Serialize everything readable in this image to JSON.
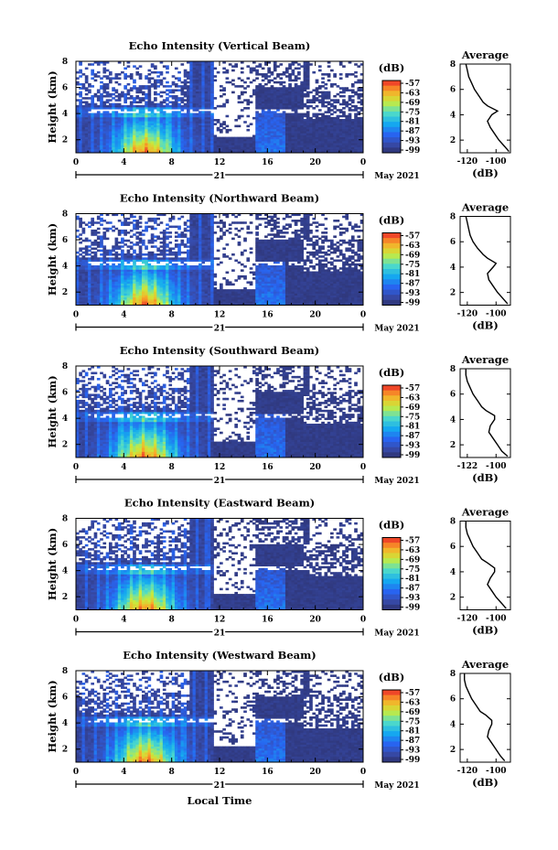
{
  "figure": {
    "x_title": "Local Time",
    "date_label": "May 2021",
    "day_label": "21",
    "y_label": "Height (km)",
    "cbar_unit": "(dB)",
    "profile_title": "Average",
    "profile_xlabel": "(dB)"
  },
  "chart_data": [
    {
      "type": "heatmap",
      "title": "Echo Intensity (Vertical Beam)",
      "xlabel": "Local Time",
      "ylabel": "Height (km)",
      "x_ticks": [
        "0",
        "4",
        "8",
        "12",
        "16",
        "20",
        "0"
      ],
      "y_ticks": [
        "2",
        "4",
        "6",
        "8"
      ],
      "xlim": [
        0,
        24
      ],
      "ylim": [
        1,
        8
      ],
      "colorbar": {
        "label": "(dB)",
        "ticks": [
          "-57",
          "-63",
          "-69",
          "-75",
          "-81",
          "-87",
          "-93",
          "-99"
        ],
        "range": [
          -99,
          -57
        ]
      },
      "profile": {
        "title": "Average",
        "xlabel": "(dB)",
        "x_ticks": [
          "-120",
          "-100"
        ],
        "xlim": [
          -125,
          -90
        ],
        "y_ticks": [
          "2",
          "4",
          "6",
          "8"
        ],
        "points": [
          [
            -91,
            1.1
          ],
          [
            -94,
            1.5
          ],
          [
            -98,
            2.0
          ],
          [
            -101,
            2.5
          ],
          [
            -104,
            3.0
          ],
          [
            -106,
            3.5
          ],
          [
            -103,
            4.0
          ],
          [
            -99,
            4.3
          ],
          [
            -106,
            4.7
          ],
          [
            -109,
            5.0
          ],
          [
            -112,
            5.5
          ],
          [
            -115,
            6.0
          ],
          [
            -117,
            6.5
          ],
          [
            -119,
            7.0
          ],
          [
            -120,
            7.5
          ],
          [
            -121,
            8.0
          ]
        ]
      }
    },
    {
      "type": "heatmap",
      "title": "Echo Intensity (Northward Beam)",
      "xlabel": "Local Time",
      "ylabel": "Height (km)",
      "x_ticks": [
        "0",
        "4",
        "8",
        "12",
        "16",
        "20",
        "0"
      ],
      "y_ticks": [
        "2",
        "4",
        "6",
        "8"
      ],
      "xlim": [
        0,
        24
      ],
      "ylim": [
        1,
        8
      ],
      "colorbar": {
        "label": "(dB)",
        "ticks": [
          "-57",
          "-63",
          "-69",
          "-75",
          "-81",
          "-87",
          "-93",
          "-99"
        ],
        "range": [
          -99,
          -57
        ]
      },
      "profile": {
        "title": "Average",
        "xlabel": "(dB)",
        "x_ticks": [
          "-120",
          "-100"
        ],
        "xlim": [
          -125,
          -90
        ],
        "y_ticks": [
          "2",
          "4",
          "6",
          "8"
        ],
        "points": [
          [
            -92,
            1.1
          ],
          [
            -95,
            1.5
          ],
          [
            -99,
            2.0
          ],
          [
            -102,
            2.5
          ],
          [
            -105,
            3.0
          ],
          [
            -106,
            3.5
          ],
          [
            -102,
            4.0
          ],
          [
            -100,
            4.3
          ],
          [
            -106,
            4.7
          ],
          [
            -109,
            5.0
          ],
          [
            -113,
            5.5
          ],
          [
            -116,
            6.0
          ],
          [
            -118,
            6.5
          ],
          [
            -119,
            7.0
          ],
          [
            -120,
            7.5
          ],
          [
            -121,
            8.0
          ]
        ]
      }
    },
    {
      "type": "heatmap",
      "title": "Echo Intensity (Southward Beam)",
      "xlabel": "Local Time",
      "ylabel": "Height (km)",
      "x_ticks": [
        "0",
        "4",
        "8",
        "12",
        "16",
        "20",
        "0"
      ],
      "y_ticks": [
        "2",
        "4",
        "6",
        "8"
      ],
      "xlim": [
        0,
        24
      ],
      "ylim": [
        1,
        8
      ],
      "colorbar": {
        "label": "(dB)",
        "ticks": [
          "-57",
          "-63",
          "-69",
          "-75",
          "-81",
          "-87",
          "-93",
          "-99"
        ],
        "range": [
          -99,
          -57
        ]
      },
      "profile": {
        "title": "Average",
        "xlabel": "(dB)",
        "x_ticks": [
          "-122",
          "-100"
        ],
        "xlim": [
          -125,
          -90
        ],
        "y_ticks": [
          "2",
          "4",
          "6",
          "8"
        ],
        "points": [
          [
            -92,
            1.1
          ],
          [
            -96,
            1.5
          ],
          [
            -99,
            2.0
          ],
          [
            -102,
            2.5
          ],
          [
            -105,
            3.0
          ],
          [
            -104,
            3.5
          ],
          [
            -101,
            4.0
          ],
          [
            -101,
            4.3
          ],
          [
            -107,
            4.7
          ],
          [
            -110,
            5.0
          ],
          [
            -113,
            5.5
          ],
          [
            -116,
            6.0
          ],
          [
            -118,
            6.5
          ],
          [
            -120,
            7.0
          ],
          [
            -121,
            7.5
          ],
          [
            -121,
            8.0
          ]
        ]
      }
    },
    {
      "type": "heatmap",
      "title": "Echo Intensity (Eastward Beam)",
      "xlabel": "Local Time",
      "ylabel": "Height (km)",
      "x_ticks": [
        "0",
        "4",
        "8",
        "12",
        "16",
        "20",
        "0"
      ],
      "y_ticks": [
        "2",
        "4",
        "6",
        "8"
      ],
      "xlim": [
        0,
        24
      ],
      "ylim": [
        1,
        8
      ],
      "colorbar": {
        "label": "(dB)",
        "ticks": [
          "-57",
          "-63",
          "-69",
          "-75",
          "-81",
          "-87",
          "-93",
          "-99"
        ],
        "range": [
          -99,
          -57
        ]
      },
      "profile": {
        "title": "Average",
        "xlabel": "(dB)",
        "x_ticks": [
          "-120",
          "-100"
        ],
        "xlim": [
          -125,
          -90
        ],
        "y_ticks": [
          "2",
          "4",
          "6",
          "8"
        ],
        "points": [
          [
            -93,
            1.1
          ],
          [
            -96,
            1.5
          ],
          [
            -100,
            2.0
          ],
          [
            -103,
            2.5
          ],
          [
            -106,
            3.0
          ],
          [
            -104,
            3.5
          ],
          [
            -101,
            4.0
          ],
          [
            -101,
            4.3
          ],
          [
            -106,
            4.7
          ],
          [
            -110,
            5.0
          ],
          [
            -113,
            5.5
          ],
          [
            -116,
            6.0
          ],
          [
            -118,
            6.5
          ],
          [
            -120,
            7.0
          ],
          [
            -121,
            7.5
          ],
          [
            -121,
            8.0
          ]
        ]
      }
    },
    {
      "type": "heatmap",
      "title": "Echo Intensity (Westward Beam)",
      "xlabel": "Local Time",
      "ylabel": "Height (km)",
      "x_ticks": [
        "0",
        "4",
        "8",
        "12",
        "16",
        "20",
        "0"
      ],
      "y_ticks": [
        "2",
        "4",
        "6",
        "8"
      ],
      "xlim": [
        0,
        24
      ],
      "ylim": [
        1,
        8
      ],
      "colorbar": {
        "label": "(dB)",
        "ticks": [
          "-57",
          "-63",
          "-69",
          "-75",
          "-81",
          "-87",
          "-93",
          "-99"
        ],
        "range": [
          -99,
          -57
        ]
      },
      "profile": {
        "title": "Average",
        "xlabel": "(dB)",
        "x_ticks": [
          "-120",
          "-100"
        ],
        "xlim": [
          -125,
          -90
        ],
        "y_ticks": [
          "2",
          "4",
          "6",
          "8"
        ],
        "points": [
          [
            -94,
            1.1
          ],
          [
            -97,
            1.5
          ],
          [
            -100,
            2.0
          ],
          [
            -103,
            2.5
          ],
          [
            -106,
            3.0
          ],
          [
            -105,
            3.5
          ],
          [
            -103,
            4.0
          ],
          [
            -103,
            4.3
          ],
          [
            -107,
            4.7
          ],
          [
            -111,
            5.0
          ],
          [
            -114,
            5.5
          ],
          [
            -117,
            6.0
          ],
          [
            -119,
            6.5
          ],
          [
            -121,
            7.0
          ],
          [
            -122,
            7.5
          ],
          [
            -122,
            8.0
          ]
        ]
      }
    }
  ]
}
